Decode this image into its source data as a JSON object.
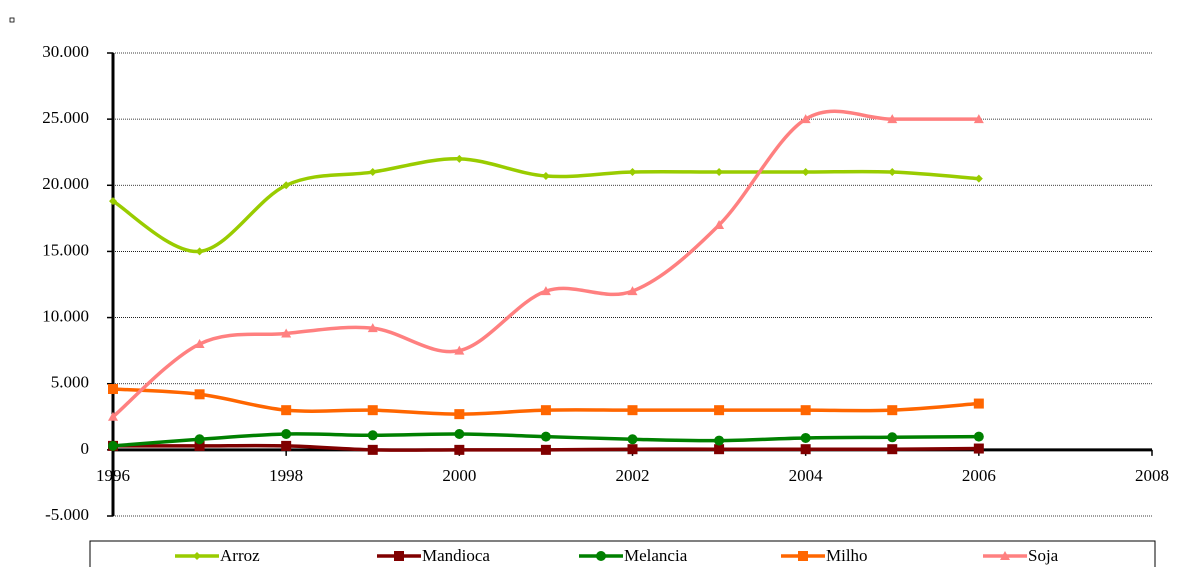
{
  "chart_data": {
    "type": "line",
    "x": [
      1996,
      1997,
      1998,
      1999,
      2000,
      2001,
      2002,
      2003,
      2004,
      2005,
      2006
    ],
    "series": [
      {
        "name": "Arroz",
        "color": "#99cc00",
        "marker": "diamond",
        "values": [
          18800,
          15000,
          20000,
          21000,
          22000,
          20700,
          21000,
          21000,
          21000,
          21000,
          20500
        ]
      },
      {
        "name": "Mandioca",
        "color": "#800000",
        "marker": "square",
        "values": [
          300,
          300,
          300,
          0,
          0,
          0,
          50,
          50,
          50,
          50,
          100
        ]
      },
      {
        "name": "Melancia",
        "color": "#008000",
        "marker": "circle",
        "values": [
          300,
          800,
          1200,
          1100,
          1200,
          1000,
          800,
          700,
          900,
          950,
          1000
        ]
      },
      {
        "name": "Milho",
        "color": "#ff6600",
        "marker": "square",
        "values": [
          4600,
          4200,
          3000,
          3000,
          2700,
          3000,
          3000,
          3000,
          3000,
          3000,
          3500
        ]
      },
      {
        "name": "Soja",
        "color": "#ff8080",
        "marker": "triangle",
        "values": [
          2500,
          8000,
          8800,
          9200,
          7500,
          12000,
          12000,
          17000,
          25000,
          25000,
          25000
        ]
      }
    ],
    "xlim": [
      1996,
      2008
    ],
    "xticks": [
      1996,
      1998,
      2000,
      2002,
      2004,
      2006,
      2008
    ],
    "ylim": [
      -5000,
      30000
    ],
    "yticks": [
      {
        "value": -5000,
        "label": "-5.000"
      },
      0,
      {
        "value": 5000,
        "label": "5.000"
      },
      {
        "value": 10000,
        "label": "10.000"
      },
      {
        "value": 15000,
        "label": "15.000"
      },
      {
        "value": 20000,
        "label": "20.000"
      },
      {
        "value": 25000,
        "label": "25.000"
      },
      {
        "value": 30000,
        "label": "30.000"
      }
    ],
    "grid": true,
    "smooth": true,
    "legend": "bottom"
  }
}
